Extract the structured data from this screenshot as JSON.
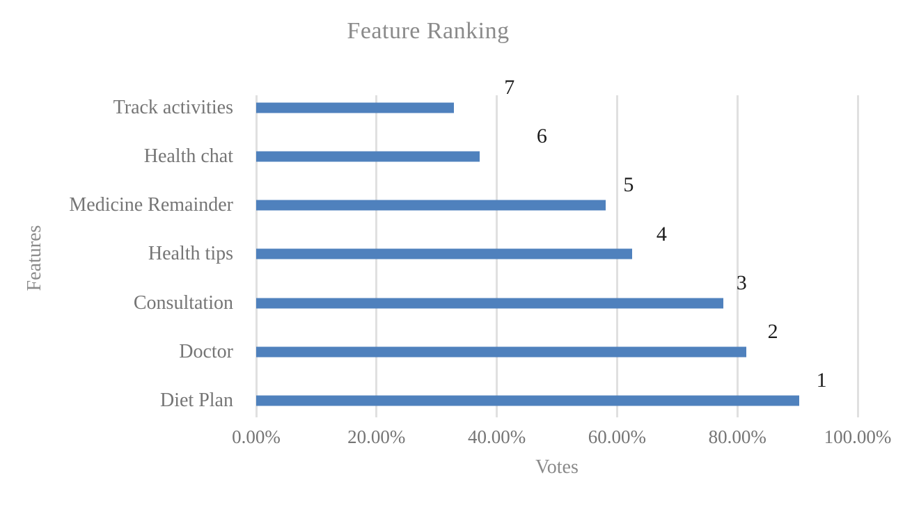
{
  "chart_data": {
    "type": "bar",
    "orientation": "horizontal",
    "title": "Feature Ranking",
    "xlabel": "Votes",
    "ylabel": "Features",
    "categories": [
      "Track activities",
      "Health chat",
      "Medicine Remainder",
      "Health tips",
      "Consultation",
      "Doctor",
      "Diet Plan"
    ],
    "values": [
      32.9,
      37.1,
      58.1,
      62.5,
      77.7,
      81.5,
      90.3
    ],
    "data_labels": [
      "7",
      "6",
      "5",
      "4",
      "3",
      "2",
      "1"
    ],
    "x_ticks": [
      {
        "label": "0.00%",
        "pct": 0
      },
      {
        "label": "20.00%",
        "pct": 20
      },
      {
        "label": "40.00%",
        "pct": 40
      },
      {
        "label": "60.00%",
        "pct": 60
      },
      {
        "label": "80.00%",
        "pct": 80
      },
      {
        "label": "100.00%",
        "pct": 100
      }
    ],
    "xlim": [
      0,
      100
    ],
    "grid": "vertical",
    "legend": "none",
    "label_x_pct": [
      42.1,
      47.5,
      61.9,
      67.4,
      80.7,
      85.9,
      94.0
    ],
    "colors": {
      "bar": "#4F81BD",
      "gridline": "#E0E0E0",
      "title_text": "#8A8A8A",
      "axis_text": "#757575",
      "data_label_text": "#1C1C1C"
    }
  }
}
